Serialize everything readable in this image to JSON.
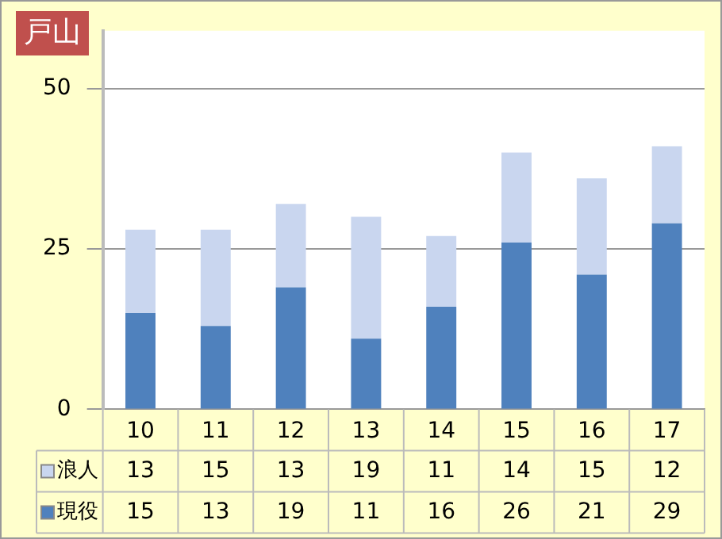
{
  "chart_data": {
    "type": "bar",
    "title": "戸山",
    "stacked": true,
    "categories": [
      "10",
      "11",
      "12",
      "13",
      "14",
      "15",
      "16",
      "17"
    ],
    "series": [
      {
        "name": "現役",
        "color": "#4f81bd",
        "values": [
          15,
          13,
          19,
          11,
          16,
          26,
          21,
          29
        ]
      },
      {
        "name": "浪人",
        "color": "#c9d6ef",
        "values": [
          13,
          15,
          13,
          19,
          11,
          14,
          15,
          12
        ]
      }
    ],
    "ylim": [
      0,
      59
    ],
    "yticks": [
      0,
      25,
      50
    ],
    "grid": "y",
    "legend": "bottom left",
    "data_labels": true
  }
}
